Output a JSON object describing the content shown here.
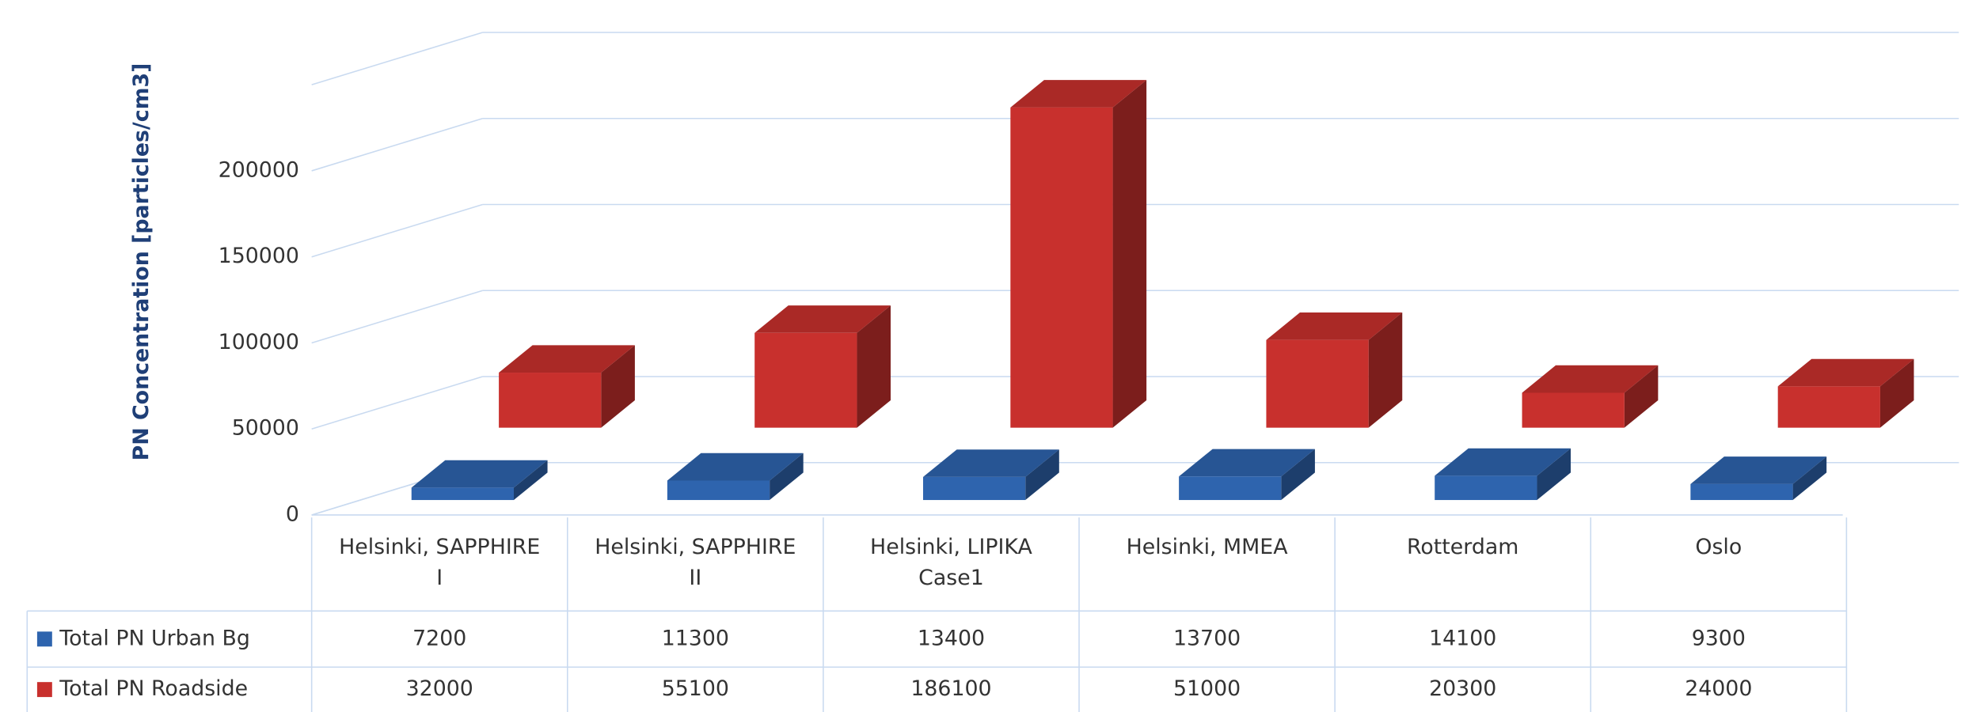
{
  "chart_data": {
    "type": "bar3d",
    "y_axis_label": "PN Concentration  [particles/cm3]",
    "categories": [
      "Helsinki, SAPPHIRE I",
      "Helsinki, SAPPHIRE II",
      "Helsinki, LIPIKA Case1",
      "Helsinki, MMEA",
      "Rotterdam",
      "Oslo"
    ],
    "series": [
      {
        "name": "Total PN Urban Bg",
        "color": "#2e64ae",
        "values": [
          7200,
          11300,
          13400,
          13700,
          14100,
          9300
        ]
      },
      {
        "name": "Total PN Roadside",
        "color": "#c8302d",
        "values": [
          32000,
          55100,
          186100,
          51000,
          20300,
          24000
        ]
      }
    ],
    "ylim": [
      0,
      250000
    ],
    "yticks": [
      0,
      50000,
      100000,
      150000,
      200000
    ],
    "grid": true
  }
}
